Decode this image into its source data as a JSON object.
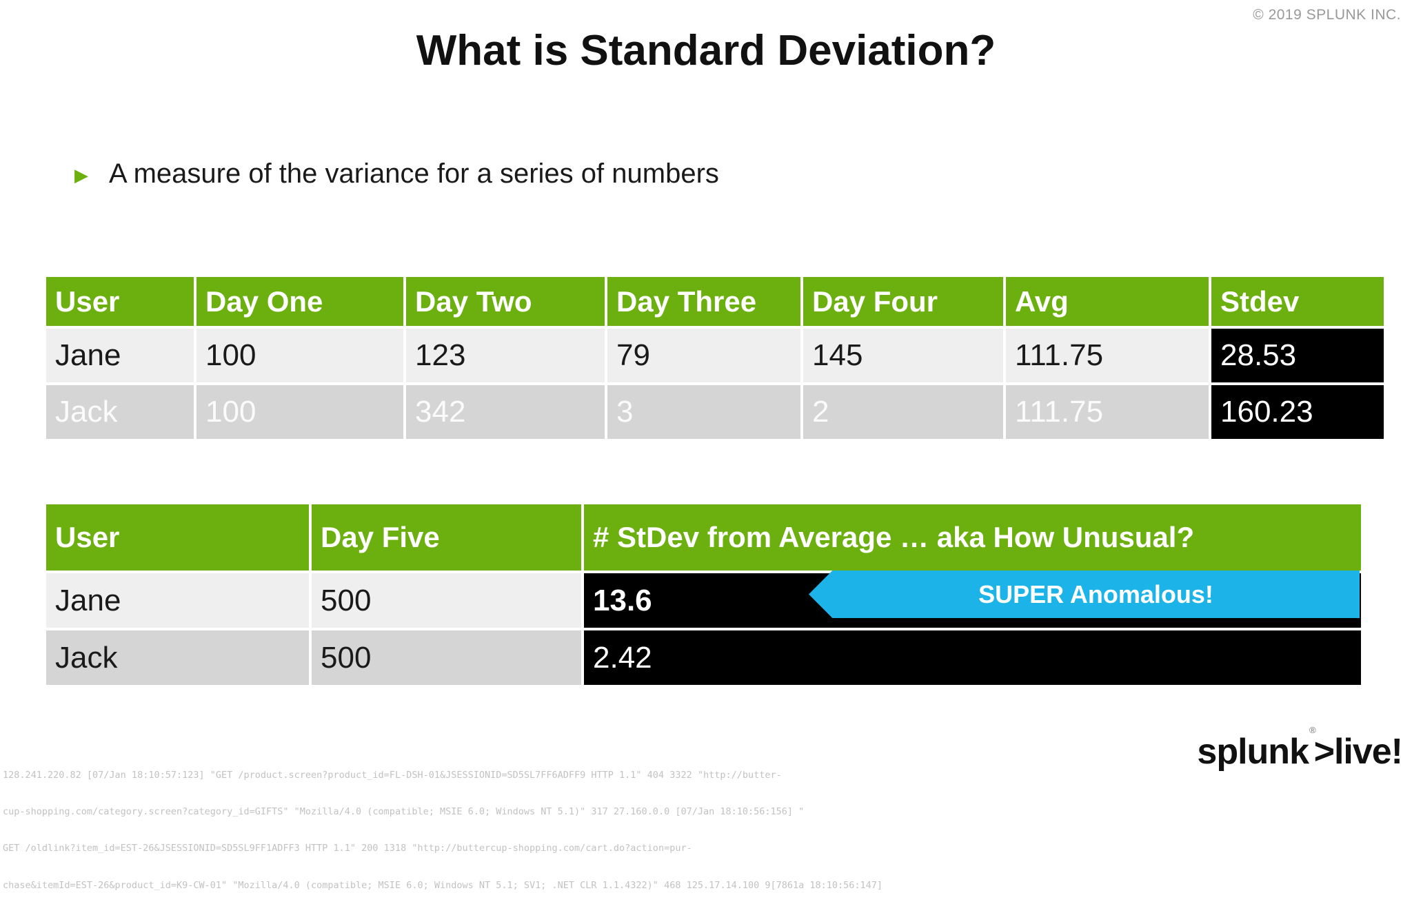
{
  "colors": {
    "green": "#6CB00F",
    "blue": "#1CB4E8",
    "row_light": "#EFEFEF",
    "row_dark": "#D5D5D5",
    "cell_black": "#000000",
    "copyright_gray": "#999999",
    "log_gray": "#C2C2C2",
    "text_dark": "#1A1A1A"
  },
  "header": {
    "copyright": "© 2019 SPLUNK INC."
  },
  "slide": {
    "title": "What is Standard Deviation?",
    "bullet_marker": "▶",
    "bullet": "A measure of the variance for a series of numbers"
  },
  "table1": {
    "headers": [
      "User",
      "Day One",
      "Day Two",
      "Day Three",
      "Day Four",
      "Avg",
      "Stdev"
    ],
    "rows": [
      [
        "Jane",
        "100",
        "123",
        "79",
        "145",
        "111.75",
        "28.53"
      ],
      [
        "Jack",
        "100",
        "342",
        "3",
        "2",
        "111.75",
        "160.23"
      ]
    ]
  },
  "table2": {
    "headers": [
      "User",
      "Day Five",
      "# StDev from Average … aka How Unusual?"
    ],
    "rows": [
      [
        "Jane",
        "500",
        "13.6"
      ],
      [
        "Jack",
        "500",
        "2.42"
      ]
    ]
  },
  "callout": {
    "label": "SUPER Anomalous!"
  },
  "logo": {
    "brand": "splunk",
    "registered": "®",
    "product": ">live!"
  },
  "logs": {
    "lines": [
      "128.241.220.82 [07/Jan 18:10:57:123] \"GET /product.screen?product_id=FL-DSH-01&JSESSIONID=SD5SL7FF6ADFF9 HTTP 1.1\" 404 3322 \"http://butter-",
      "cup-shopping.com/category.screen?category_id=GIFTS\" \"Mozilla/4.0 (compatible; MSIE 6.0; Windows NT 5.1)\" 317 27.160.0.0 [07/Jan 18:10:56:156] \"",
      "GET /oldlink?item_id=EST-26&JSESSIONID=SD5SL9FF1ADFF3 HTTP 1.1\" 200 1318 \"http://buttercup-shopping.com/cart.do?action=pur-",
      "chase&itemId=EST-26&product_id=K9-CW-01\" \"Mozilla/4.0 (compatible; MSIE 6.0; Windows NT 5.1; SV1; .NET CLR 1.1.4322)\" 468 125.17.14.100 9[7861a 18:10:56:147]"
    ]
  }
}
